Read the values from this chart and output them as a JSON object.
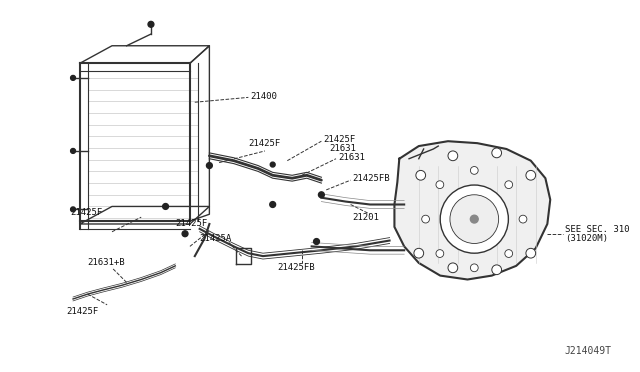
{
  "bg_color": "#ffffff",
  "line_color": "#333333",
  "label_color": "#111111",
  "diagram_id": "J214049T",
  "parts": {
    "radiator_label": "21400",
    "hose_upper": "21631",
    "clamp_upper": "21425F",
    "hose_lower": "21631+B",
    "clamp_lower_1": "21425F",
    "clamp_lower_2": "21425F",
    "clamp_lower_3": "21425F",
    "clamp_lower_4": "21425FB",
    "clamp_fb": "21425FB",
    "hose_mid": "21201",
    "connector": "21425A",
    "see_sec": "SEE SEC. 310",
    "see_sec2": "(31020M)"
  },
  "figsize": [
    6.4,
    3.72
  ],
  "dpi": 100
}
